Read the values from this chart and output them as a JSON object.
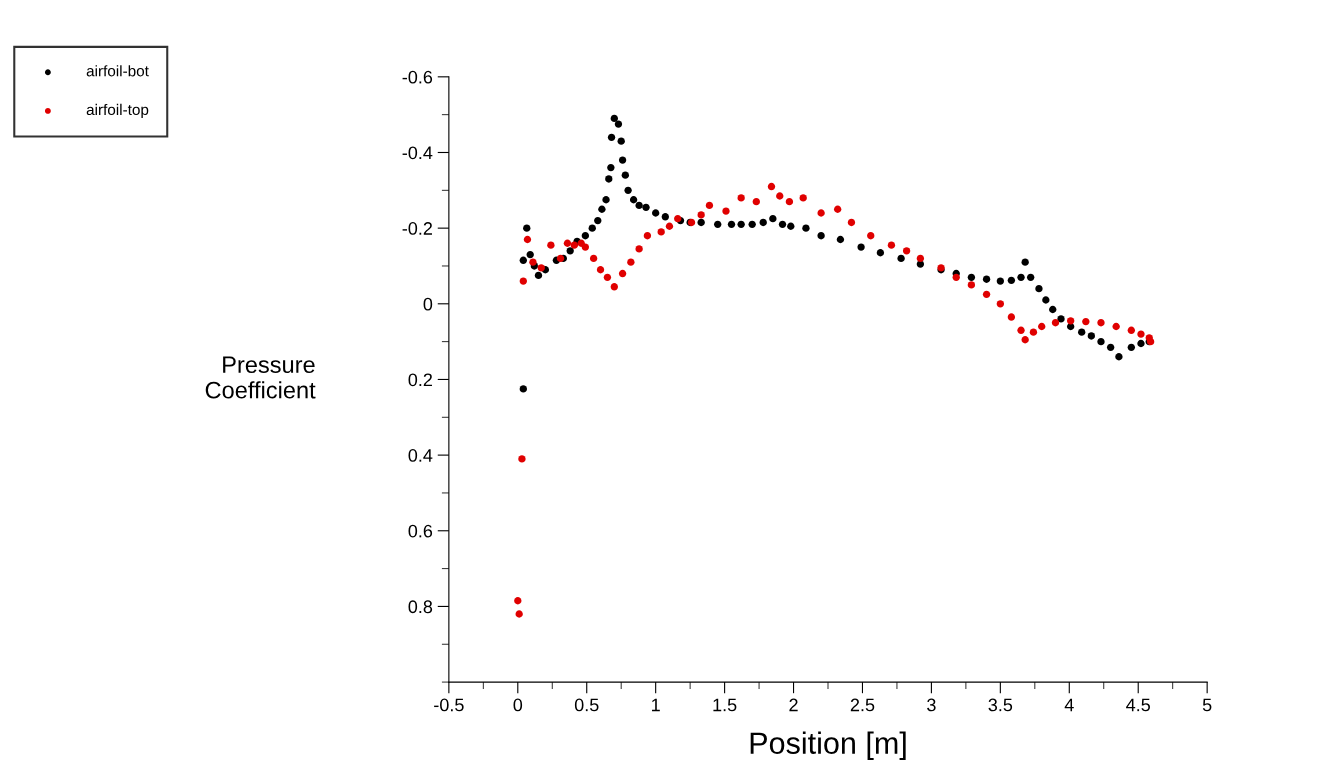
{
  "chart_data": {
    "type": "scatter",
    "xlabel": "Position [m]",
    "ylabel": "Pressure\nCoefficient",
    "xlim": [
      -0.5,
      5
    ],
    "ylim": [
      1.0,
      -0.6
    ],
    "xticks": [
      -0.5,
      0,
      0.5,
      1,
      1.5,
      2,
      2.5,
      3,
      3.5,
      4,
      4.5,
      5
    ],
    "yticks": [
      -0.6,
      -0.4,
      -0.2,
      0,
      0.2,
      0.4,
      0.6,
      0.8
    ],
    "legend": "top left",
    "marker": "circle",
    "grid": false,
    "series": [
      {
        "name": "airfoil-bot",
        "color": "#000000",
        "x": [
          0.04,
          0.04,
          0.065,
          0.09,
          0.12,
          0.15,
          0.2,
          0.28,
          0.33,
          0.38,
          0.43,
          0.49,
          0.54,
          0.58,
          0.61,
          0.64,
          0.66,
          0.675,
          0.68,
          0.7,
          0.73,
          0.75,
          0.76,
          0.78,
          0.8,
          0.84,
          0.88,
          0.93,
          1.0,
          1.07,
          1.18,
          1.25,
          1.33,
          1.45,
          1.55,
          1.62,
          1.7,
          1.78,
          1.85,
          1.92,
          1.98,
          2.09,
          2.2,
          2.34,
          2.49,
          2.63,
          2.78,
          2.92,
          3.07,
          3.18,
          3.29,
          3.4,
          3.5,
          3.58,
          3.65,
          3.68,
          3.72,
          3.78,
          3.83,
          3.88,
          3.94,
          4.01,
          4.09,
          4.16,
          4.23,
          4.3,
          4.36,
          4.45,
          4.52,
          4.58
        ],
        "values": [
          0.225,
          -0.115,
          -0.2,
          -0.13,
          -0.1,
          -0.075,
          -0.09,
          -0.115,
          -0.12,
          -0.14,
          -0.165,
          -0.18,
          -0.2,
          -0.22,
          -0.25,
          -0.275,
          -0.33,
          -0.36,
          -0.44,
          -0.49,
          -0.475,
          -0.43,
          -0.38,
          -0.34,
          -0.3,
          -0.275,
          -0.26,
          -0.255,
          -0.24,
          -0.23,
          -0.22,
          -0.215,
          -0.215,
          -0.21,
          -0.21,
          -0.21,
          -0.21,
          -0.215,
          -0.225,
          -0.21,
          -0.205,
          -0.2,
          -0.18,
          -0.17,
          -0.15,
          -0.135,
          -0.12,
          -0.105,
          -0.09,
          -0.08,
          -0.07,
          -0.065,
          -0.06,
          -0.062,
          -0.07,
          -0.11,
          -0.07,
          -0.04,
          -0.01,
          0.015,
          0.04,
          0.06,
          0.075,
          0.085,
          0.1,
          0.115,
          0.14,
          0.115,
          0.105,
          0.1
        ]
      },
      {
        "name": "airfoil-top",
        "color": "#e00000",
        "x": [
          0.0,
          0.01,
          0.03,
          0.04,
          0.07,
          0.11,
          0.17,
          0.24,
          0.31,
          0.36,
          0.41,
          0.46,
          0.49,
          0.55,
          0.6,
          0.65,
          0.7,
          0.76,
          0.82,
          0.88,
          0.94,
          1.04,
          1.1,
          1.16,
          1.26,
          1.33,
          1.39,
          1.51,
          1.62,
          1.73,
          1.84,
          1.9,
          1.97,
          2.07,
          2.2,
          2.32,
          2.42,
          2.56,
          2.71,
          2.82,
          2.92,
          3.07,
          3.18,
          3.29,
          3.4,
          3.5,
          3.58,
          3.65,
          3.68,
          3.74,
          3.8,
          3.9,
          4.01,
          4.12,
          4.23,
          4.34,
          4.45,
          4.52,
          4.58,
          4.59
        ],
        "values": [
          0.785,
          0.82,
          0.41,
          -0.06,
          -0.17,
          -0.11,
          -0.095,
          -0.155,
          -0.12,
          -0.16,
          -0.155,
          -0.16,
          -0.15,
          -0.12,
          -0.09,
          -0.07,
          -0.045,
          -0.08,
          -0.11,
          -0.145,
          -0.18,
          -0.19,
          -0.205,
          -0.225,
          -0.215,
          -0.235,
          -0.26,
          -0.245,
          -0.28,
          -0.27,
          -0.31,
          -0.285,
          -0.27,
          -0.28,
          -0.24,
          -0.25,
          -0.215,
          -0.18,
          -0.155,
          -0.14,
          -0.12,
          -0.095,
          -0.07,
          -0.05,
          -0.025,
          0.0,
          0.035,
          0.07,
          0.095,
          0.075,
          0.06,
          0.05,
          0.045,
          0.047,
          0.05,
          0.06,
          0.07,
          0.08,
          0.09,
          0.1
        ]
      }
    ]
  }
}
